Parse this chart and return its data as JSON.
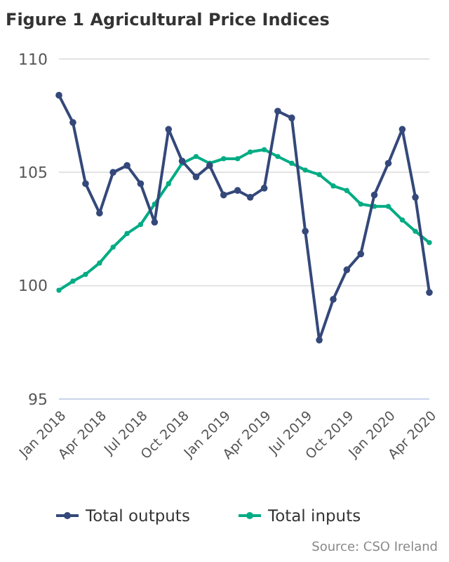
{
  "chart_data": {
    "type": "line",
    "title": "Figure 1 Agricultural Price Indices",
    "x": [
      "2018-01",
      "2018-02",
      "2018-03",
      "2018-04",
      "2018-05",
      "2018-06",
      "2018-07",
      "2018-08",
      "2018-09",
      "2018-10",
      "2018-11",
      "2018-12",
      "2019-01",
      "2019-02",
      "2019-03",
      "2019-04",
      "2019-05",
      "2019-06",
      "2019-07",
      "2019-08",
      "2019-09",
      "2019-10",
      "2019-11",
      "2019-12",
      "2020-01",
      "2020-02",
      "2020-03",
      "2020-04"
    ],
    "series": [
      {
        "name": "Total outputs",
        "color": "#34487a",
        "marker": "circle",
        "values": [
          108.4,
          107.2,
          104.5,
          103.2,
          105.0,
          105.3,
          104.5,
          102.8,
          106.9,
          105.5,
          104.8,
          105.3,
          104.0,
          104.2,
          103.9,
          104.3,
          107.7,
          107.4,
          102.4,
          97.6,
          99.4,
          100.7,
          101.4,
          104.0,
          105.4,
          106.9,
          103.9,
          99.7
        ]
      },
      {
        "name": "Total inputs",
        "color": "#00ac84",
        "marker": "circle",
        "values": [
          99.8,
          100.2,
          100.5,
          101.0,
          101.7,
          102.3,
          102.7,
          103.6,
          104.5,
          105.4,
          105.7,
          105.4,
          105.6,
          105.6,
          105.9,
          106.0,
          105.7,
          105.4,
          105.1,
          104.9,
          104.4,
          104.2,
          103.6,
          103.5,
          103.5,
          102.9,
          102.4,
          101.9
        ]
      }
    ],
    "xlim": [
      "2018-01",
      "2020-04"
    ],
    "xticks": [
      {
        "value": "2018-01",
        "label": "Jan 2018"
      },
      {
        "value": "2018-04",
        "label": "Apr 2018"
      },
      {
        "value": "2018-07",
        "label": "Jul 2018"
      },
      {
        "value": "2018-10",
        "label": "Oct 2018"
      },
      {
        "value": "2019-01",
        "label": "Jan 2019"
      },
      {
        "value": "2019-04",
        "label": "Apr 2019"
      },
      {
        "value": "2019-07",
        "label": "Jul 2019"
      },
      {
        "value": "2019-10",
        "label": "Oct 2019"
      },
      {
        "value": "2020-01",
        "label": "Jan 2020"
      },
      {
        "value": "2020-04",
        "label": "Apr 2020"
      }
    ],
    "ylim": [
      95,
      110
    ],
    "yticks": [
      95,
      100,
      105,
      110
    ],
    "grid": "y",
    "legend": "bottom",
    "annotations": [
      "Source: CSO Ireland"
    ]
  }
}
